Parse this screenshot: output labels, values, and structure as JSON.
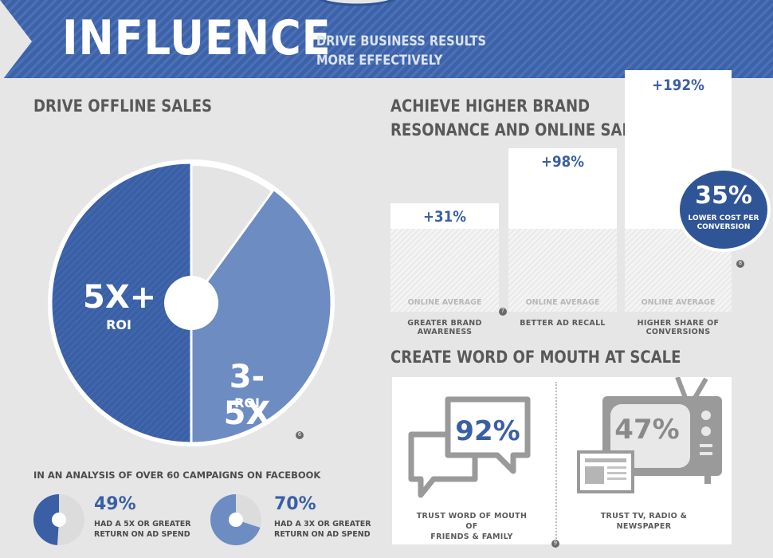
{
  "banner": {
    "title": "INFLUENCE",
    "subtitle_line1": "DRIVE BUSINESS RESULTS",
    "subtitle_line2": "MORE EFFECTIVELY"
  },
  "offline": {
    "heading": "DRIVE OFFLINE SALES",
    "slice_large_value": "5X+",
    "slice_large_unit": "ROI",
    "slice_small_value": "3-5X",
    "slice_small_unit": "ROI",
    "note": "6",
    "analysis_caption": "IN AN ANALYSIS OF OVER 60 CAMPAIGNS ON FACEBOOK",
    "stat1": {
      "value": "49%",
      "desc_line1": "HAD A 5X OR GREATER",
      "desc_line2": "RETURN ON AD SPEND",
      "fraction": 0.49
    },
    "stat2": {
      "value": "70%",
      "desc_line1": "HAD A 3X OR GREATER",
      "desc_line2": "RETURN ON AD SPEND",
      "fraction": 0.7
    }
  },
  "brand": {
    "heading_line1": "ACHIEVE HIGHER BRAND",
    "heading_line2": "RESONANCE AND ONLINE SALES",
    "bars": [
      {
        "value": "+31%",
        "baseline_label": "ONLINE AVERAGE",
        "caption": "GREATER BRAND AWARENESS",
        "note": "7"
      },
      {
        "value": "+98%",
        "baseline_label": "ONLINE AVERAGE",
        "caption": "BETTER AD RECALL",
        "note": ""
      },
      {
        "value": "+192%",
        "baseline_label": "ONLINE AVERAGE",
        "caption": "HIGHER SHARE OF CONVERSIONS",
        "note": "8"
      }
    ],
    "badge_value": "35%",
    "badge_line1": "LOWER COST PER",
    "badge_line2": "CONVERSION"
  },
  "wom": {
    "heading": "CREATE WORD OF MOUTH AT SCALE",
    "left_value": "92%",
    "left_caption_line1": "TRUST WORD OF MOUTH OF",
    "left_caption_line2": "FRIENDS & FAMILY",
    "right_value": "47%",
    "right_caption_line1": "TRUST TV, RADIO &",
    "right_caption_line2": "NEWSPAPER",
    "note": "9"
  },
  "colors": {
    "brand_blue": "#3a5fa5",
    "light_blue": "#6d8cc2",
    "background": "#e6e6e6",
    "banner_dark": "#2f5597",
    "banner_light": "#4a70b4"
  }
}
